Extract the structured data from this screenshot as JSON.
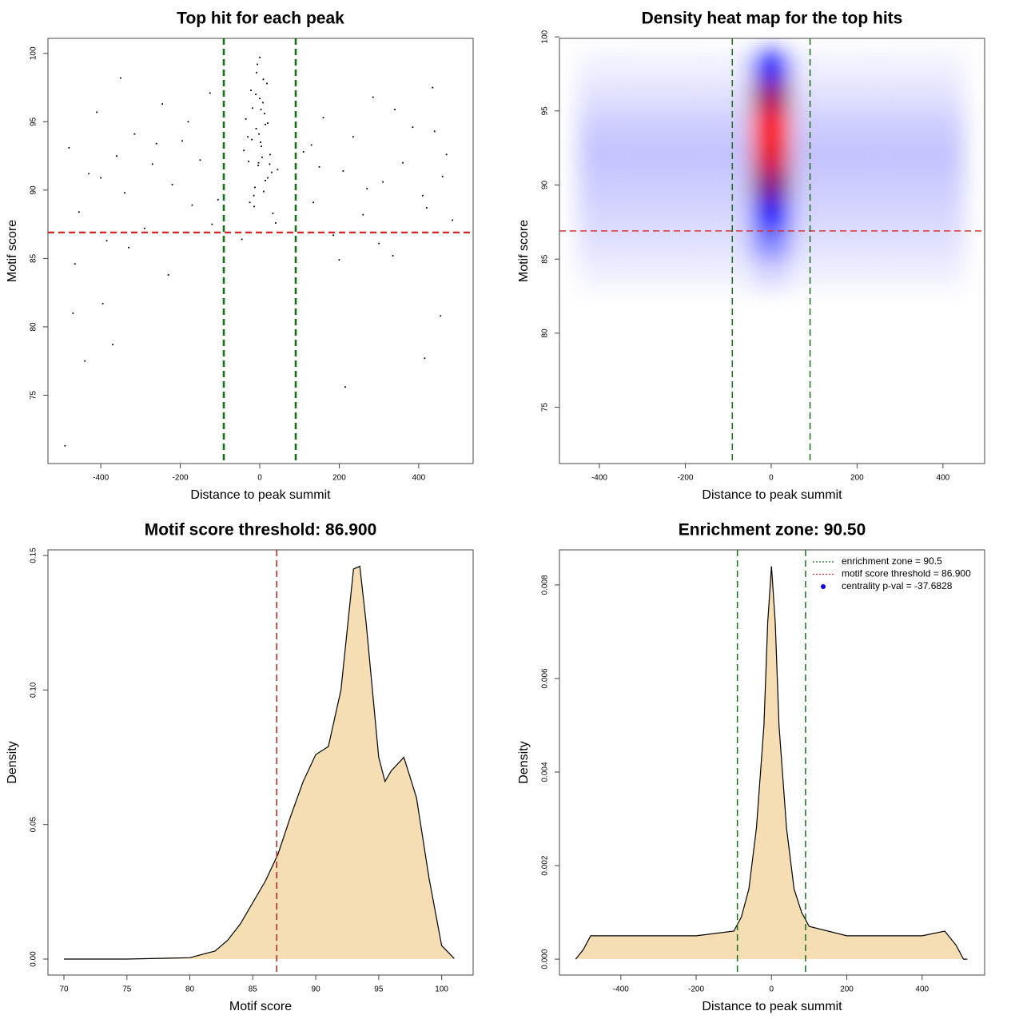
{
  "chart_data": [
    {
      "type": "scatter",
      "title": "Top hit for each peak",
      "xlabel": "Distance to peak summit",
      "ylabel": "Motif score",
      "xlim": [
        -533,
        537
      ],
      "ylim": [
        70,
        101.1
      ],
      "xticks": [
        -400,
        -200,
        0,
        200,
        400
      ],
      "yticks": [
        75,
        80,
        85,
        90,
        95,
        100
      ],
      "color": "#000000",
      "hlines": [
        86.9
      ],
      "hline_color": "#dd2222",
      "vlines": [
        -90.5,
        90.5
      ],
      "vline_color": "#1a6e1a",
      "x": [
        -480,
        -455,
        -430,
        -410,
        -385,
        -360,
        -340,
        -315,
        -290,
        -270,
        -245,
        -220,
        -195,
        -170,
        -150,
        -125,
        -105,
        -465,
        -400,
        -330,
        -260,
        -180,
        -120,
        110,
        135,
        160,
        185,
        210,
        235,
        260,
        285,
        310,
        335,
        360,
        385,
        410,
        435,
        460,
        485,
        130,
        200,
        270,
        340,
        420,
        470,
        -350,
        -230,
        150,
        300,
        440,
        -35,
        -28,
        -22,
        -15,
        -9,
        -4,
        0,
        4,
        9,
        14,
        20,
        26,
        33,
        -30,
        -18,
        -6,
        6,
        18,
        30,
        -12,
        -2,
        2,
        12,
        -25,
        25,
        -40,
        40,
        -8,
        8,
        0,
        -20,
        20,
        -14,
        14,
        -3,
        3,
        -45,
        45,
        -10,
        10,
        -490,
        -370,
        -440,
        415,
        455,
        215,
        -470,
        -395
      ],
      "y": [
        93.1,
        88.4,
        91.2,
        95.7,
        86.3,
        92.5,
        89.8,
        94.1,
        87.2,
        91.9,
        96.3,
        90.4,
        93.6,
        88.9,
        92.2,
        97.1,
        89.3,
        84.6,
        90.9,
        85.8,
        93.4,
        95.0,
        87.5,
        92.8,
        89.1,
        95.3,
        86.7,
        91.4,
        93.9,
        88.2,
        96.8,
        90.6,
        85.2,
        92.0,
        94.6,
        89.6,
        97.5,
        91.0,
        87.8,
        93.3,
        84.9,
        90.1,
        95.9,
        88.7,
        92.6,
        98.2,
        83.8,
        91.7,
        86.1,
        94.3,
        95.2,
        92.1,
        97.3,
        89.6,
        94.5,
        91.8,
        96.7,
        93.2,
        98.1,
        90.7,
        94.9,
        92.6,
        88.3,
        93.9,
        96.0,
        99.2,
        92.4,
        97.8,
        91.3,
        90.2,
        94.1,
        93.5,
        95.6,
        89.1,
        91.9,
        92.9,
        87.6,
        98.6,
        96.4,
        99.7,
        93.7,
        90.9,
        88.8,
        94.8,
        92.0,
        95.9,
        86.4,
        91.5,
        97.0,
        89.9,
        71.3,
        78.7,
        77.5,
        77.7,
        80.8,
        75.6,
        81.0,
        81.7
      ]
    },
    {
      "type": "heatmap",
      "title": "Density heat map for the top hits",
      "xlabel": "Distance to peak summit",
      "ylabel": "Motif score",
      "xlim": [
        -493,
        497
      ],
      "ylim": [
        71.2,
        99.9
      ],
      "xticks": [
        -400,
        -200,
        0,
        200,
        400
      ],
      "yticks": [
        75,
        80,
        85,
        90,
        95,
        100
      ],
      "colors": [
        "#ffffff",
        "#0000ff",
        "#ff0000"
      ],
      "hlines": [
        86.9
      ],
      "hline_color": "#dd2222",
      "vlines": [
        -90.5,
        90.5
      ],
      "vline_color": "#1a6e1a",
      "x": [
        -400,
        -300,
        -200,
        -100,
        0,
        100,
        200,
        300,
        400
      ],
      "y": [
        84,
        86,
        88,
        90,
        92,
        94,
        96,
        98
      ],
      "z": [
        [
          0.03,
          0.03,
          0.03,
          0.03,
          0.08,
          0.03,
          0.03,
          0.03,
          0.03
        ],
        [
          0.06,
          0.06,
          0.06,
          0.06,
          0.25,
          0.06,
          0.06,
          0.06,
          0.06
        ],
        [
          0.08,
          0.08,
          0.08,
          0.08,
          0.5,
          0.08,
          0.08,
          0.08,
          0.08
        ],
        [
          0.1,
          0.1,
          0.1,
          0.1,
          0.75,
          0.1,
          0.1,
          0.1,
          0.1
        ],
        [
          0.12,
          0.12,
          0.12,
          0.12,
          0.95,
          0.12,
          0.12,
          0.12,
          0.12
        ],
        [
          0.1,
          0.1,
          0.1,
          0.1,
          1,
          0.1,
          0.1,
          0.1,
          0.1
        ],
        [
          0.06,
          0.06,
          0.06,
          0.06,
          0.8,
          0.06,
          0.06,
          0.06,
          0.06
        ],
        [
          0.03,
          0.03,
          0.03,
          0.03,
          0.45,
          0.03,
          0.03,
          0.03,
          0.03
        ]
      ]
    },
    {
      "type": "area",
      "title": "Motif score threshold: 86.900",
      "xlabel": "Motif score",
      "ylabel": "Density",
      "xlim": [
        68.73,
        102.5
      ],
      "ylim": [
        -0.00594,
        0.1521
      ],
      "xticks": [
        70,
        75,
        80,
        85,
        90,
        95,
        100
      ],
      "yticks": [
        {
          "value": 0,
          "label": "0.00"
        },
        {
          "value": 0.05,
          "label": "0.05"
        },
        {
          "value": 0.1,
          "label": "0.10"
        },
        {
          "value": 0.15,
          "label": "0.15"
        }
      ],
      "color": "#f5deb3",
      "vlines": [
        86.9
      ],
      "vline_color": "#bb2222",
      "x": [
        70,
        75,
        78,
        80,
        82,
        83,
        84,
        85,
        86,
        87,
        88,
        89,
        90,
        91,
        92,
        93,
        93.5,
        94,
        95,
        95.5,
        96,
        97,
        98,
        99,
        100,
        101
      ],
      "y": [
        0,
        0,
        0.0003,
        0.0005,
        0.003,
        0.007,
        0.013,
        0.021,
        0.029,
        0.039,
        0.053,
        0.066,
        0.076,
        0.079,
        0.1,
        0.145,
        0.146,
        0.125,
        0.075,
        0.066,
        0.07,
        0.075,
        0.06,
        0.03,
        0.005,
        0.0002
      ]
    },
    {
      "type": "area",
      "title": "Enrichment zone: 90.50",
      "xlabel": "Distance to peak summit",
      "ylabel": "Density",
      "xlim": [
        -563,
        566
      ],
      "ylim": [
        -0.00034,
        0.00875
      ],
      "xticks": [
        -400,
        -200,
        0,
        200,
        400
      ],
      "yticks": [
        {
          "value": 0,
          "label": "0.000"
        },
        {
          "value": 0.002,
          "label": "0.002"
        },
        {
          "value": 0.004,
          "label": "0.004"
        },
        {
          "value": 0.006,
          "label": "0.006"
        },
        {
          "value": 0.008,
          "label": "0.008"
        }
      ],
      "color": "#f5deb3",
      "vlines": [
        -90.5,
        90.5
      ],
      "vline_color": "#1a6e1a",
      "legend": [
        {
          "label": "enrichment zone = 90.5",
          "color": "#1a6e1a",
          "symbol": "line"
        },
        {
          "label": "motif score threshold = 86.900",
          "color": "#dd2222",
          "symbol": "line"
        },
        {
          "label": "centrality p-val = -37.6828",
          "color": "#0000ff",
          "symbol": "point"
        }
      ],
      "x": [
        -520,
        -500,
        -480,
        -400,
        -200,
        -100,
        -80,
        -60,
        -40,
        -20,
        -10,
        0,
        10,
        20,
        40,
        60,
        80,
        100,
        200,
        400,
        460,
        490,
        510,
        520
      ],
      "y": [
        0,
        0.0002,
        0.0005,
        0.0005,
        0.0005,
        0.0006,
        0.0009,
        0.0015,
        0.0028,
        0.005,
        0.0072,
        0.0084,
        0.0072,
        0.005,
        0.0028,
        0.0015,
        0.001,
        0.0007,
        0.0005,
        0.0005,
        0.0006,
        0.0003,
        0,
        0
      ]
    }
  ]
}
